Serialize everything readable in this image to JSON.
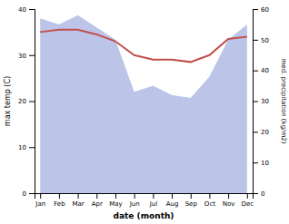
{
  "chart_data": {
    "type": "line",
    "xlabel": "date (month)",
    "ylabel": "max temp (C)",
    "y2label": "med. precipitation (kg/m2)",
    "categories": [
      "Jan",
      "Feb",
      "Mar",
      "Apr",
      "May",
      "Jun",
      "Jul",
      "Aug",
      "Sep",
      "Oct",
      "Nov",
      "Dec"
    ],
    "series": [
      {
        "type": "area",
        "color": "#bcc5e8",
        "axis": "y2",
        "values": [
          57,
          55,
          58,
          54,
          50,
          33,
          35,
          32,
          31,
          38,
          50,
          55
        ]
      },
      {
        "type": "line",
        "color": "#c0504d",
        "values": [
          35,
          35.5,
          35.5,
          34.5,
          33,
          30,
          29,
          29,
          28.5,
          30,
          33.5,
          34
        ]
      }
    ],
    "ylim": [
      0,
      40
    ],
    "yticks": [
      0,
      10,
      20,
      30,
      40
    ],
    "y2lim": [
      0,
      60
    ],
    "y2ticks": [
      0,
      10,
      20,
      30,
      40,
      50,
      60
    ]
  }
}
